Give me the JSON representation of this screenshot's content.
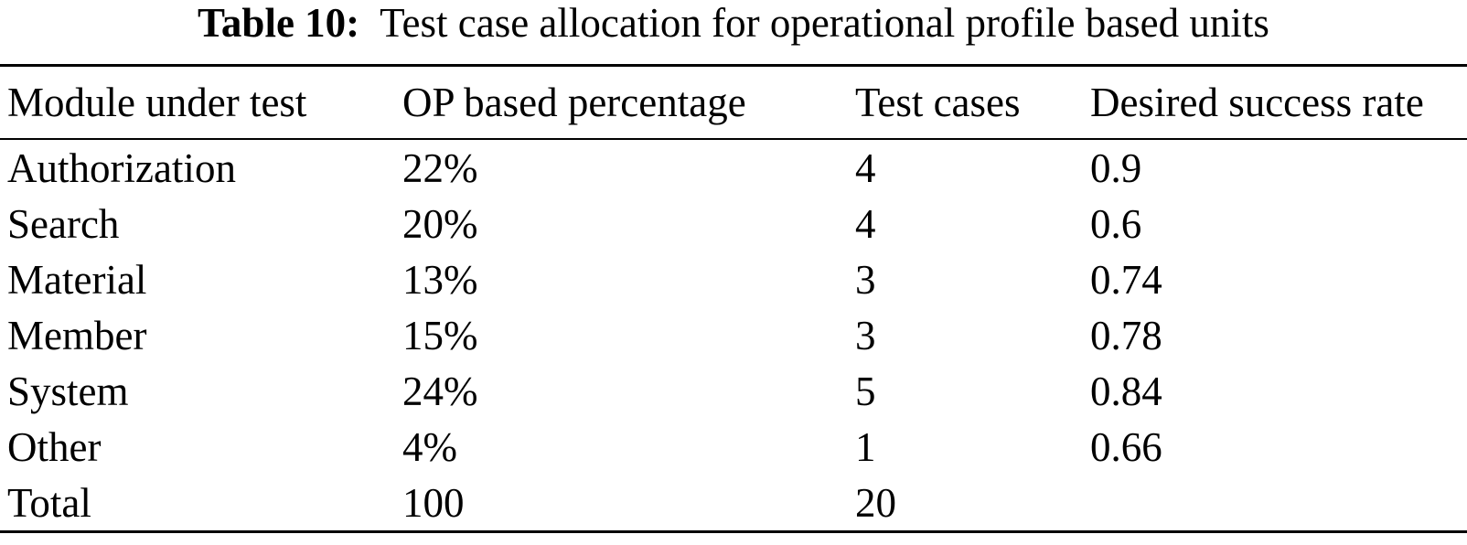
{
  "caption": {
    "label": "Table 10:",
    "text": "Test case allocation for operational profile based units"
  },
  "table": {
    "columns": [
      "Module under test",
      "OP based percentage",
      "Test cases",
      "Desired success rate"
    ],
    "rows": [
      {
        "module": "Authorization",
        "op_percentage": "22%",
        "test_cases": "4",
        "success_rate": "0.9"
      },
      {
        "module": "Search",
        "op_percentage": "20%",
        "test_cases": "4",
        "success_rate": "0.6"
      },
      {
        "module": "Material",
        "op_percentage": "13%",
        "test_cases": "3",
        "success_rate": "0.74"
      },
      {
        "module": "Member",
        "op_percentage": "15%",
        "test_cases": "3",
        "success_rate": "0.78"
      },
      {
        "module": "System",
        "op_percentage": "24%",
        "test_cases": "5",
        "success_rate": "0.84"
      },
      {
        "module": "Other",
        "op_percentage": "4%",
        "test_cases": "1",
        "success_rate": "0.66"
      },
      {
        "module": "Total",
        "op_percentage": "100",
        "test_cases": "20",
        "success_rate": ""
      }
    ]
  },
  "colors": {
    "text": "#000000",
    "background": "#ffffff",
    "rule": "#000000"
  }
}
